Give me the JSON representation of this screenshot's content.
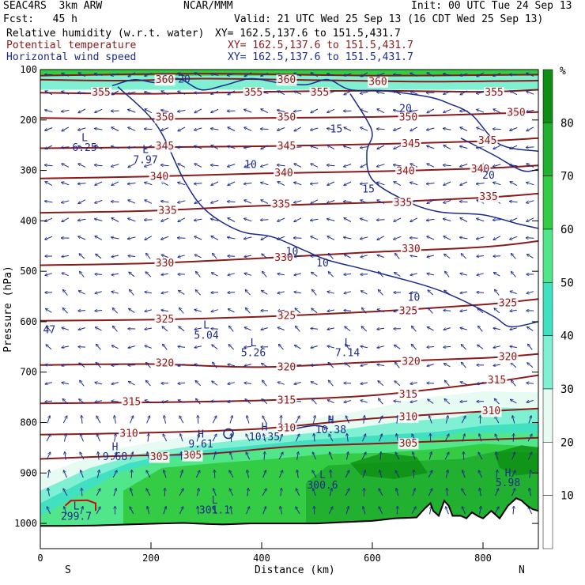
{
  "header": {
    "model": "SEAC4RS  3km ARW",
    "org": "NCAR/MMM",
    "init": "Init: 00 UTC Tue 24 Sep 13",
    "fcst": "Fcst:   45 h",
    "valid": "Valid: 21 UTC Wed 25 Sep 13 (16 CDT Wed 25 Sep 13)",
    "field1": "Relative humidity (w.r.t. water)",
    "field1_xy": "XY= 162.5,137.6 to 151.5,431.7",
    "field2": "Potential temperature",
    "field2_xy": "XY= 162.5,137.6 to 151.5,431.7",
    "field3": "Horizontal wind speed",
    "field3_xy": "XY= 162.5,137.6 to 151.5,431.7"
  },
  "colors": {
    "theta": "#8b1a1a",
    "wind": "#1c2a8c",
    "humidity": [
      "#ffffff",
      "#e8fbf3",
      "#7ff0d2",
      "#40e0c0",
      "#52e68a",
      "#33cc44",
      "#22b030",
      "#0e8e14"
    ]
  },
  "chart_data": {
    "type": "cross-section",
    "xlabel": "Distance (km)",
    "ylabel": "Pressure (hPa)",
    "xlim": [
      0,
      900
    ],
    "ylim": [
      1050,
      100
    ],
    "x_ticks": [
      0,
      200,
      400,
      600,
      800
    ],
    "y_ticks": [
      100,
      200,
      300,
      400,
      500,
      600,
      700,
      800,
      900,
      1000
    ],
    "south_label": "S",
    "north_label": "N",
    "colorbar": {
      "unit": "%",
      "ticks": [
        10,
        20,
        30,
        40,
        50,
        60,
        70,
        80
      ]
    },
    "theta_labels": [
      {
        "text": "360",
        "x": 225,
        "p": 121
      },
      {
        "text": "355",
        "x": 110,
        "p": 146
      },
      {
        "text": "355",
        "x": 385,
        "p": 146
      },
      {
        "text": "355",
        "x": 505,
        "p": 146
      },
      {
        "text": "355",
        "x": 820,
        "p": 146
      },
      {
        "text": "360",
        "x": 445,
        "p": 121
      },
      {
        "text": "360",
        "x": 610,
        "p": 125
      },
      {
        "text": "350",
        "x": 225,
        "p": 196
      },
      {
        "text": "350",
        "x": 445,
        "p": 196
      },
      {
        "text": "350",
        "x": 665,
        "p": 196
      },
      {
        "text": "350",
        "x": 860,
        "p": 186
      },
      {
        "text": "345",
        "x": 225,
        "p": 253
      },
      {
        "text": "345",
        "x": 445,
        "p": 253
      },
      {
        "text": "345",
        "x": 670,
        "p": 248
      },
      {
        "text": "345",
        "x": 808,
        "p": 242
      },
      {
        "text": "340",
        "x": 215,
        "p": 313
      },
      {
        "text": "340",
        "x": 440,
        "p": 306
      },
      {
        "text": "340",
        "x": 660,
        "p": 302
      },
      {
        "text": "340",
        "x": 795,
        "p": 298
      },
      {
        "text": "335",
        "x": 230,
        "p": 381
      },
      {
        "text": "335",
        "x": 435,
        "p": 368
      },
      {
        "text": "335",
        "x": 655,
        "p": 365
      },
      {
        "text": "335",
        "x": 810,
        "p": 353
      },
      {
        "text": "330",
        "x": 225,
        "p": 485
      },
      {
        "text": "330",
        "x": 440,
        "p": 474
      },
      {
        "text": "330",
        "x": 670,
        "p": 457
      },
      {
        "text": "325",
        "x": 225,
        "p": 596
      },
      {
        "text": "325",
        "x": 445,
        "p": 589
      },
      {
        "text": "325",
        "x": 665,
        "p": 580
      },
      {
        "text": "325",
        "x": 845,
        "p": 564
      },
      {
        "text": "320",
        "x": 225,
        "p": 683
      },
      {
        "text": "320",
        "x": 445,
        "p": 691
      },
      {
        "text": "320",
        "x": 670,
        "p": 680
      },
      {
        "text": "320",
        "x": 845,
        "p": 671
      },
      {
        "text": "315",
        "x": 165,
        "p": 760
      },
      {
        "text": "315",
        "x": 445,
        "p": 757
      },
      {
        "text": "315",
        "x": 665,
        "p": 745
      },
      {
        "text": "315",
        "x": 825,
        "p": 717
      },
      {
        "text": "310",
        "x": 160,
        "p": 823
      },
      {
        "text": "310",
        "x": 445,
        "p": 812
      },
      {
        "text": "310",
        "x": 665,
        "p": 790
      },
      {
        "text": "310",
        "x": 815,
        "p": 778
      },
      {
        "text": "305",
        "x": 215,
        "p": 869
      },
      {
        "text": "305",
        "x": 275,
        "p": 866
      },
      {
        "text": "305",
        "x": 665,
        "p": 842
      }
    ],
    "wind_labels": [
      {
        "text": "20",
        "x": 260,
        "p": 120
      },
      {
        "text": "15",
        "x": 535,
        "p": 219
      },
      {
        "text": "10",
        "x": 380,
        "p": 290
      },
      {
        "text": "15",
        "x": 593,
        "p": 338
      },
      {
        "text": "20",
        "x": 810,
        "p": 311
      },
      {
        "text": "10",
        "x": 455,
        "p": 462
      },
      {
        "text": "10",
        "x": 510,
        "p": 485
      },
      {
        "text": "10",
        "x": 675,
        "p": 553
      },
      {
        "text": "20",
        "x": 660,
        "p": 178
      }
    ],
    "extrema": [
      {
        "type": "L",
        "value": "6.25",
        "x": 80,
        "p": 256
      },
      {
        "type": "L",
        "value": "7.97",
        "x": 190,
        "p": 280
      },
      {
        "type": "L",
        "value": "5.04",
        "x": 300,
        "p": 628
      },
      {
        "type": "L",
        "value": "5.26",
        "x": 385,
        "p": 663
      },
      {
        "type": "L",
        "value": "7.14",
        "x": 555,
        "p": 663
      },
      {
        "type": "H",
        "value": "10.38",
        "x": 525,
        "p": 816
      },
      {
        "type": "H",
        "value": "10.35",
        "x": 405,
        "p": 830
      },
      {
        "type": "H",
        "value": "9.61",
        "x": 290,
        "p": 844
      },
      {
        "type": "H",
        "value": "9.68",
        "x": 135,
        "p": 869
      },
      {
        "type": "L",
        "value": "300.6",
        "x": 510,
        "p": 925
      },
      {
        "type": "L",
        "value": "301.1",
        "x": 315,
        "p": 975
      },
      {
        "type": "L",
        "value": "299.7",
        "x": 65,
        "p": 987
      },
      {
        "type": "H",
        "value": "5.98",
        "x": 845,
        "p": 921
      }
    ],
    "edge_labels": [
      {
        "text": "47",
        "x": 5,
        "p": 617
      }
    ]
  }
}
